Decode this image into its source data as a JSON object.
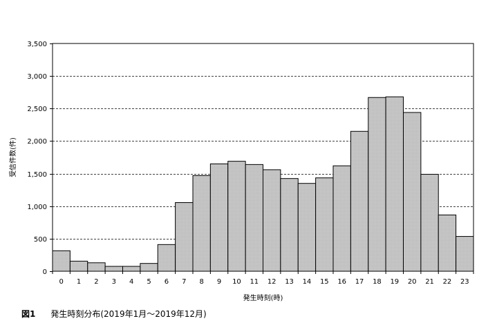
{
  "chart_data": {
    "type": "bar",
    "categories": [
      "0",
      "1",
      "2",
      "3",
      "4",
      "5",
      "6",
      "7",
      "8",
      "9",
      "10",
      "11",
      "12",
      "13",
      "14",
      "15",
      "16",
      "17",
      "18",
      "19",
      "20",
      "21",
      "22",
      "23"
    ],
    "values": [
      315,
      155,
      130,
      75,
      75,
      120,
      410,
      1055,
      1470,
      1650,
      1690,
      1640,
      1560,
      1425,
      1350,
      1435,
      1620,
      2150,
      2670,
      2680,
      2440,
      1490,
      865,
      535
    ],
    "xlabel": "発生時刻(時)",
    "ylabel": "受信件数(件)",
    "ylim": [
      0,
      3500
    ],
    "yticks": [
      0,
      500,
      1000,
      1500,
      2000,
      2500,
      3000,
      3500
    ],
    "ytick_labels": [
      "0",
      "500",
      "1,000",
      "1,500",
      "2,000",
      "2,500",
      "3,000",
      "3,500"
    ],
    "grid": "horizontal dashed",
    "bar_color": "#c8c8c8"
  },
  "caption": {
    "figure_number": "図1",
    "text": "発生時刻分布(2019年1月～2019年12月)"
  }
}
